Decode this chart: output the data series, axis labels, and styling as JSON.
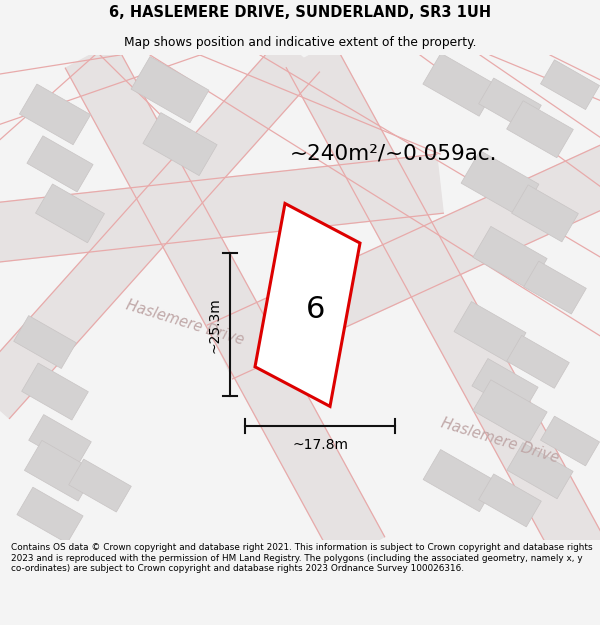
{
  "title_line1": "6, HASLEMERE DRIVE, SUNDERLAND, SR3 1UH",
  "title_line2": "Map shows position and indicative extent of the property.",
  "area_text": "~240m²/~0.059ac.",
  "label_number": "6",
  "dim_height": "~25.3m",
  "dim_width": "~17.8m",
  "road_name1": "Haslemere Drive",
  "road_name2": "Haslemere Drive",
  "footer_text": "Contains OS data © Crown copyright and database right 2021. This information is subject to Crown copyright and database rights 2023 and is reproduced with the permission of HM Land Registry. The polygons (including the associated geometry, namely x, y co-ordinates) are subject to Crown copyright and database rights 2023 Ordnance Survey 100026316.",
  "bg_color": "#f4f4f4",
  "map_bg": "#eeecec",
  "road_fill": "#e6e2e2",
  "plot_edge_color": "#dd0000",
  "plot_fill_color": "#ffffff",
  "building_color": "#d4d2d2",
  "building_edge": "#c8c4c4",
  "road_line_color": "#e8aaaa",
  "road_text_color": "#c0a8a8",
  "dim_color": "#111111",
  "title_fontsize": 10.5,
  "subtitle_fontsize": 8.8,
  "footer_fontsize": 6.4,
  "area_fontsize": 15.5,
  "label_fontsize": 22,
  "dim_fontsize": 10,
  "road_label_fontsize": 10.5
}
